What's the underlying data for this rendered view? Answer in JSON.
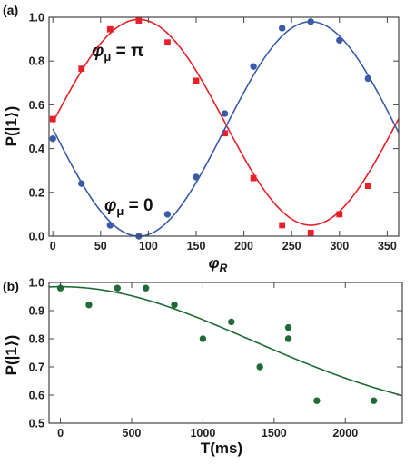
{
  "chart_data": [
    {
      "type": "scatter",
      "panel_label": "(a)",
      "xlabel": "φR",
      "xlabel_base": "φ",
      "xlabel_sub": "R",
      "ylabel": "P(|1⟩)",
      "xlim": [
        -4,
        362
      ],
      "ylim": [
        0,
        1
      ],
      "x_ticks": [
        0,
        50,
        100,
        150,
        200,
        250,
        300,
        350
      ],
      "y_ticks": [
        0.0,
        0.2,
        0.4,
        0.6,
        0.8,
        1.0
      ],
      "y_tick_labels": [
        "0.0",
        "0.2",
        "0.4",
        "0.6",
        "0.8",
        "1.0"
      ],
      "grid": false,
      "annotations": [
        {
          "base": "φ",
          "sub": "μ",
          "rest": " = π",
          "series": "red"
        },
        {
          "base": "φ",
          "sub": "μ",
          "rest": " = 0",
          "series": "blue"
        }
      ],
      "series": [
        {
          "marker": "square",
          "color": "#e8202a",
          "x": [
            0,
            30,
            60,
            90,
            120,
            150,
            180,
            210,
            240,
            270,
            300,
            330
          ],
          "y": [
            0.535,
            0.765,
            0.945,
            0.985,
            0.885,
            0.71,
            0.47,
            0.265,
            0.05,
            0.015,
            0.1,
            0.23
          ],
          "fit": {
            "form": "a + b*sin(x)",
            "a": 0.52,
            "b": 0.47
          }
        },
        {
          "marker": "circle",
          "color": "#3a5ba8",
          "x": [
            0,
            30,
            60,
            90,
            120,
            150,
            180,
            210,
            240,
            270,
            300,
            330
          ],
          "y": [
            0.445,
            0.24,
            0.05,
            0.0,
            0.1,
            0.27,
            0.56,
            0.775,
            0.95,
            0.98,
            0.895,
            0.72
          ],
          "fit": {
            "form": "a - b*sin(x)",
            "a": 0.49,
            "b": 0.49
          }
        }
      ]
    },
    {
      "type": "scatter",
      "panel_label": "(b)",
      "xlabel": "T(ms)",
      "ylabel": "P(|1⟩)",
      "xlim": [
        -80,
        2400
      ],
      "ylim": [
        0.5,
        1.0
      ],
      "x_ticks": [
        0,
        500,
        1000,
        1500,
        2000
      ],
      "y_ticks": [
        0.5,
        0.6,
        0.7,
        0.8,
        0.9,
        1.0
      ],
      "y_tick_labels": [
        "0.5",
        "0.6",
        "0.7",
        "0.8",
        "0.9",
        "1.0"
      ],
      "grid": false,
      "series": [
        {
          "marker": "circle",
          "color": "#1f6b36",
          "x": [
            0,
            200,
            400,
            600,
            800,
            1000,
            1200,
            1400,
            1600,
            1600,
            1800,
            2200
          ],
          "y": [
            0.98,
            0.92,
            0.98,
            0.98,
            0.92,
            0.8,
            0.86,
            0.7,
            0.84,
            0.8,
            0.58,
            0.58
          ],
          "fit": {
            "form": "0.5 + a*exp(-(x/tau)^2)",
            "a": 0.485,
            "tau": 1900
          }
        }
      ]
    }
  ]
}
